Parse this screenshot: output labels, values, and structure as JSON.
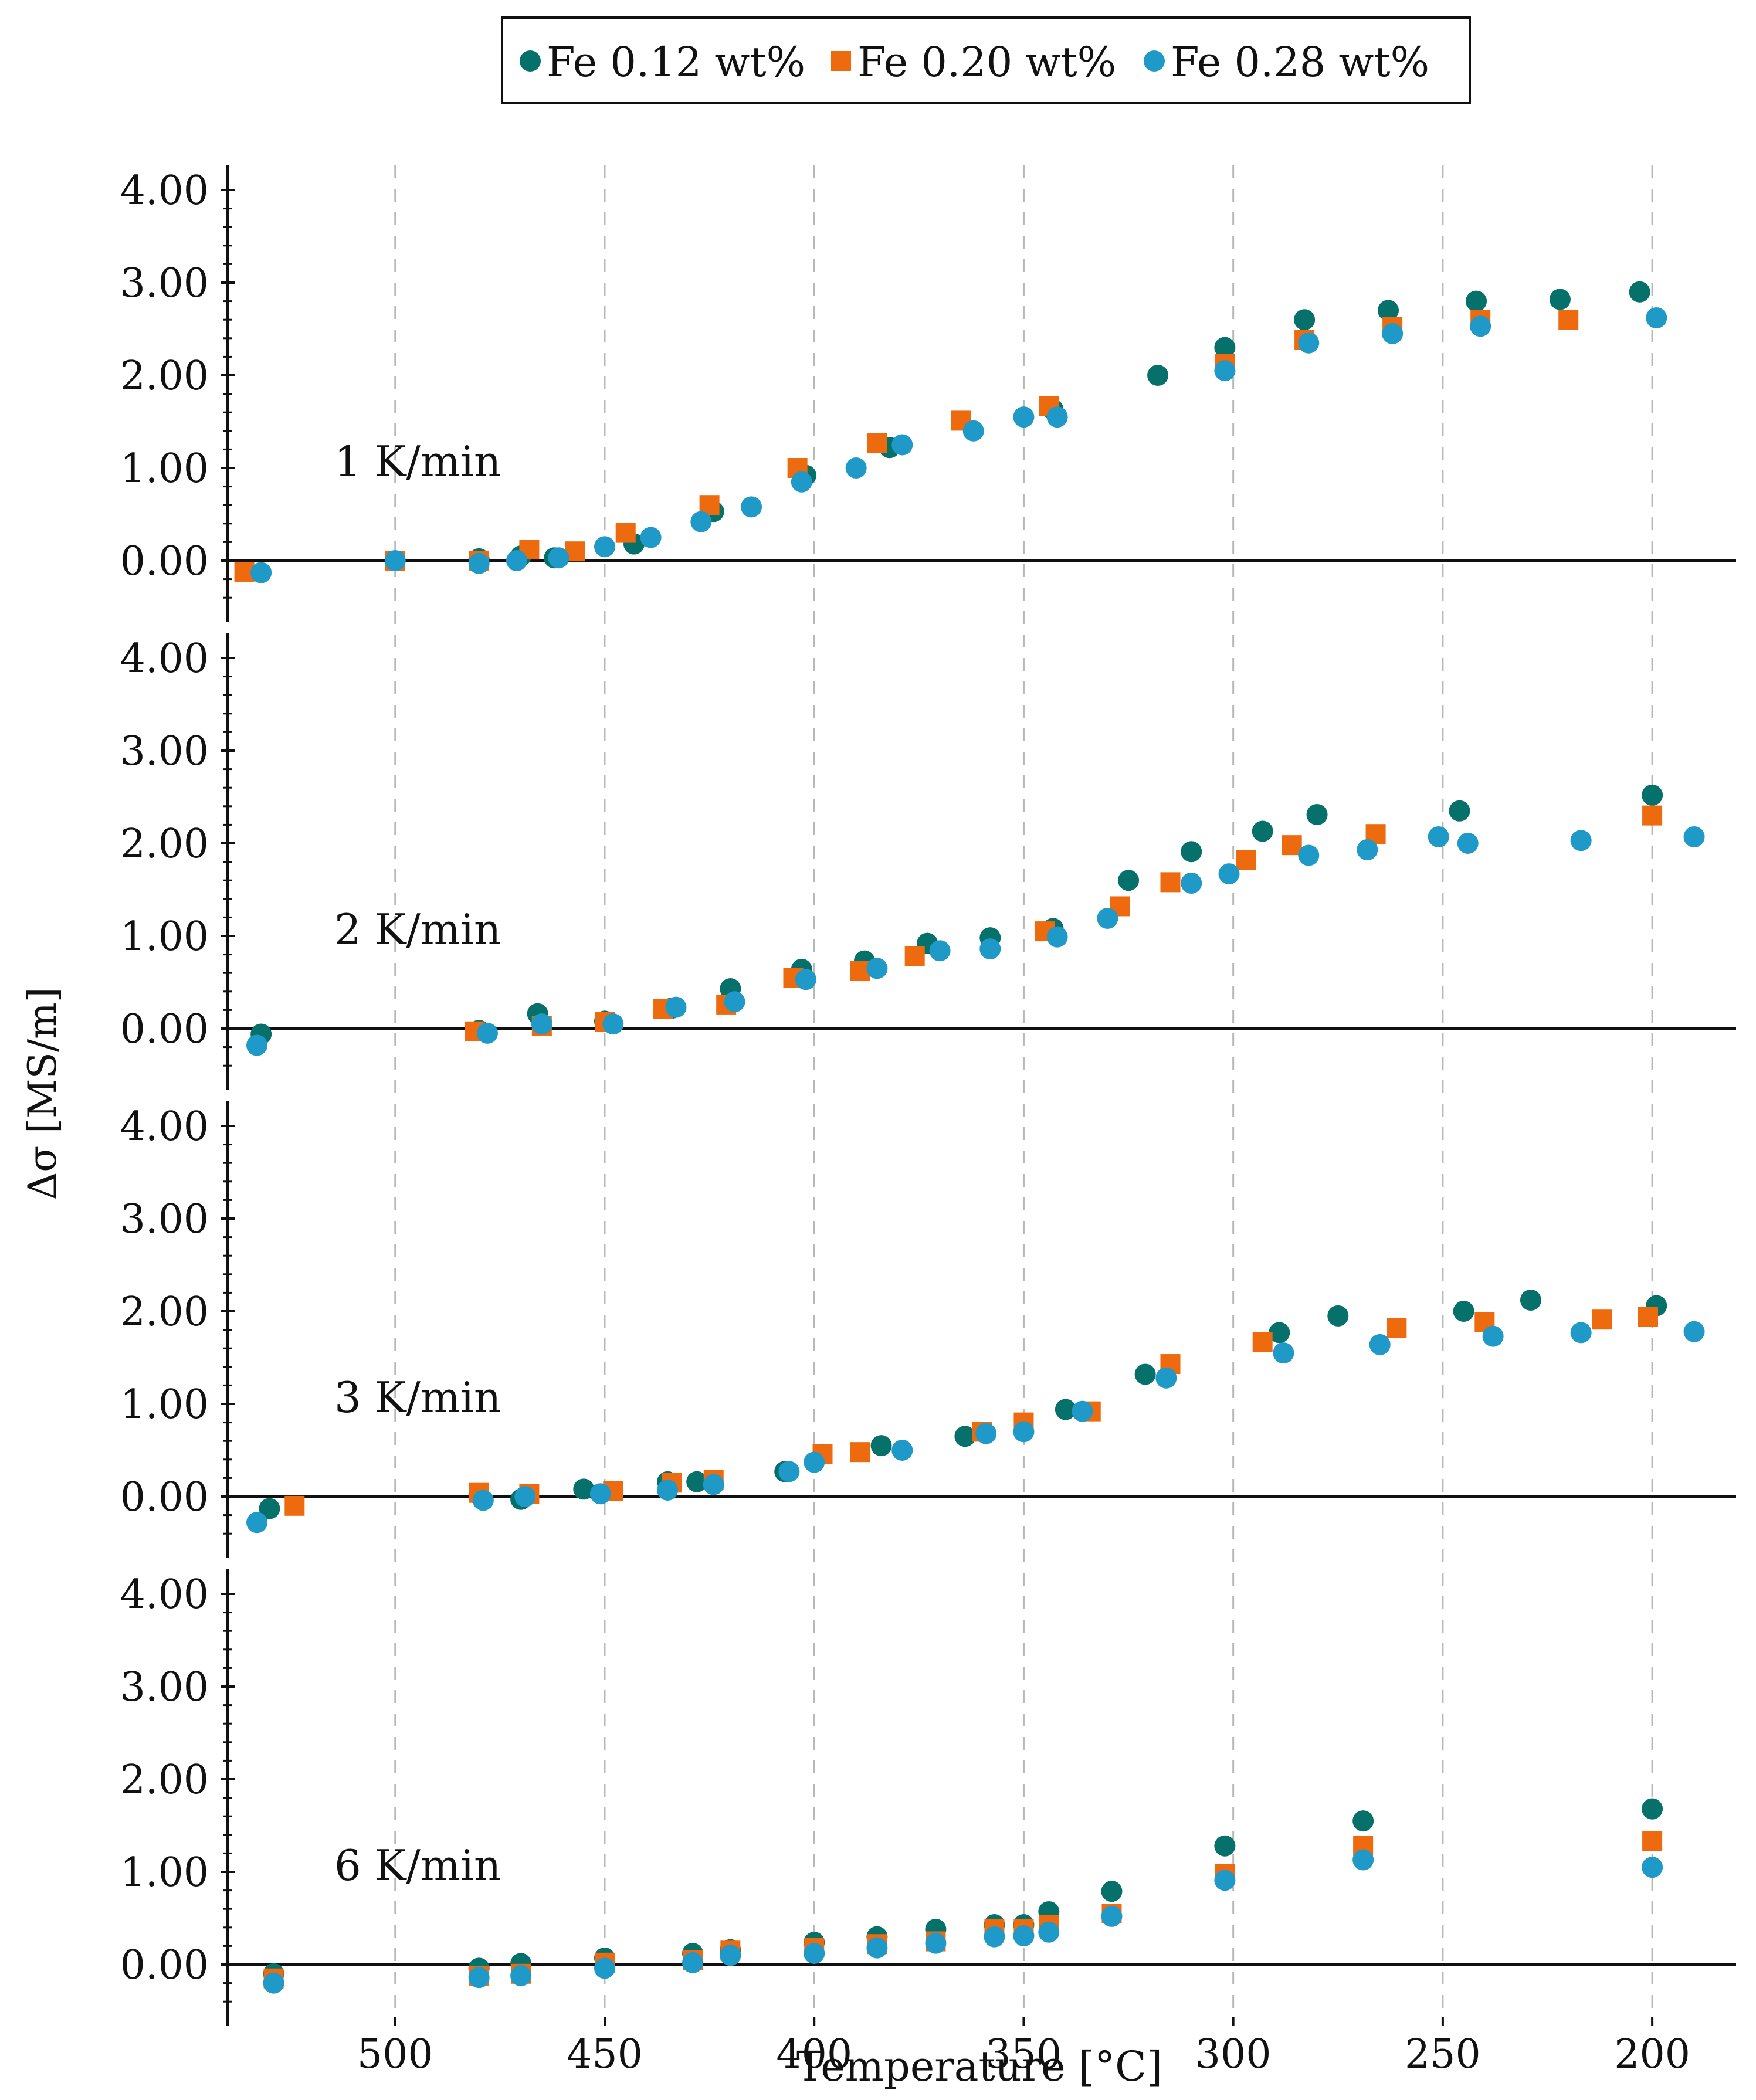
{
  "chart_data": {
    "type": "scatter",
    "xlabel": "Temperature [°C]",
    "ylabel": "Δσ [MS/m]",
    "xlim": [
      540,
      180
    ],
    "x_reversed": true,
    "ylim": [
      -0.5,
      4.0
    ],
    "x_ticks": [
      500,
      450,
      400,
      350,
      300,
      250,
      200
    ],
    "y_ticks": [
      "0.00",
      "1.00",
      "2.00",
      "3.00",
      "4.00"
    ],
    "grid": "vertical dashed lines at x ticks",
    "legend_position": "top-center",
    "colors": {
      "Fe 0.12 wt%": "#06706a",
      "Fe 0.20 wt%": "#ee6a0e",
      "Fe 0.28 wt%": "#1f9ac8"
    },
    "legend": [
      {
        "label": "Fe 0.12 wt%",
        "marker": "circle",
        "color": "#06706a"
      },
      {
        "label": "Fe 0.20 wt%",
        "marker": "square",
        "color": "#ee6a0e"
      },
      {
        "label": "Fe 0.28 wt%",
        "marker": "circle",
        "color": "#1f9ac8"
      }
    ],
    "panels": [
      {
        "label": "1 K/min",
        "series": [
          {
            "name": "Fe 0.12 wt%",
            "x": [
              480,
              470,
              462,
              443,
              424,
              402,
              382,
              343,
              318,
              302,
              283,
              263,
              242,
              222,
              203
            ],
            "y": [
              0.02,
              0.05,
              0.03,
              0.18,
              0.53,
              0.92,
              1.22,
              1.63,
              2.0,
              2.3,
              2.6,
              2.7,
              2.8,
              2.82,
              2.9
            ]
          },
          {
            "name": "Fe 0.20 wt%",
            "x": [
              536,
              500,
              480,
              468,
              457,
              445,
              425,
              404,
              385,
              365,
              344,
              302,
              283,
              262,
              241,
              220
            ],
            "y": [
              -0.12,
              0.0,
              0.0,
              0.12,
              0.1,
              0.3,
              0.6,
              1.0,
              1.27,
              1.51,
              1.67,
              2.12,
              2.38,
              2.52,
              2.6,
              2.6
            ]
          },
          {
            "name": "Fe 0.28 wt%",
            "x": [
              532,
              500,
              480,
              471,
              461,
              450,
              439,
              427,
              415,
              403,
              390,
              379,
              362,
              350,
              342,
              302,
              282,
              262,
              241,
              199
            ],
            "y": [
              -0.13,
              0.0,
              -0.03,
              0.0,
              0.03,
              0.15,
              0.25,
              0.42,
              0.58,
              0.85,
              1.0,
              1.25,
              1.4,
              1.55,
              1.55,
              2.05,
              2.35,
              2.45,
              2.53,
              2.62
            ]
          }
        ]
      },
      {
        "label": "2 K/min",
        "series": [
          {
            "name": "Fe 0.12 wt%",
            "x": [
              532,
              480,
              466,
              450,
              434,
              420,
              403,
              388,
              373,
              358,
              343,
              325,
              310,
              293,
              280,
              246,
              200
            ],
            "y": [
              -0.06,
              -0.02,
              0.16,
              0.08,
              0.22,
              0.43,
              0.64,
              0.73,
              0.92,
              0.98,
              1.08,
              1.6,
              1.91,
              2.13,
              2.31,
              2.35,
              2.52
            ]
          },
          {
            "name": "Fe 0.20 wt%",
            "x": [
              481,
              465,
              450,
              436,
              421,
              405,
              389,
              376,
              345,
              327,
              315,
              297,
              286,
              266,
              200
            ],
            "y": [
              -0.03,
              0.03,
              0.07,
              0.21,
              0.26,
              0.55,
              0.62,
              0.78,
              1.05,
              1.32,
              1.58,
              1.82,
              1.98,
              2.1,
              2.3
            ]
          },
          {
            "name": "Fe 0.28 wt%",
            "x": [
              533,
              478,
              465,
              448,
              433,
              419,
              402,
              385,
              370,
              358,
              342,
              330,
              310,
              301,
              282,
              268,
              251,
              244,
              217,
              190
            ],
            "y": [
              -0.18,
              -0.05,
              0.05,
              0.05,
              0.23,
              0.29,
              0.53,
              0.65,
              0.84,
              0.86,
              0.99,
              1.19,
              1.57,
              1.67,
              1.87,
              1.93,
              2.07,
              2.0,
              2.03,
              2.07
            ]
          }
        ]
      },
      {
        "label": "3 K/min",
        "series": [
          {
            "name": "Fe 0.12 wt%",
            "x": [
              530,
              480,
              470,
              455,
              435,
              428,
              407,
              384,
              364,
              340,
              321,
              289,
              275,
              245,
              229,
              199
            ],
            "y": [
              -0.13,
              0.02,
              -0.03,
              0.08,
              0.16,
              0.16,
              0.27,
              0.55,
              0.65,
              0.94,
              1.32,
              1.77,
              1.95,
              2.0,
              2.12,
              2.06
            ]
          },
          {
            "name": "Fe 0.20 wt%",
            "x": [
              524,
              480,
              468,
              448,
              434,
              424,
              398,
              389,
              360,
              350,
              334,
              315,
              293,
              261,
              240,
              212,
              201
            ],
            "y": [
              -0.1,
              0.04,
              0.03,
              0.06,
              0.15,
              0.18,
              0.46,
              0.48,
              0.7,
              0.8,
              0.92,
              1.43,
              1.67,
              1.82,
              1.88,
              1.91,
              1.94
            ]
          },
          {
            "name": "Fe 0.28 wt%",
            "x": [
              533,
              479,
              469,
              451,
              435,
              424,
              406,
              400,
              379,
              359,
              350,
              336,
              316,
              288,
              265,
              238,
              217,
              190
            ],
            "y": [
              -0.28,
              -0.04,
              0.0,
              0.03,
              0.07,
              0.13,
              0.27,
              0.37,
              0.5,
              0.68,
              0.7,
              0.92,
              1.28,
              1.55,
              1.64,
              1.73,
              1.77,
              1.78
            ]
          }
        ]
      },
      {
        "label": "6 K/min",
        "series": [
          {
            "name": "Fe 0.12 wt%",
            "x": [
              529,
              480,
              470,
              450,
              429,
              420,
              400,
              385,
              371,
              357,
              350,
              344,
              329,
              302,
              269,
              200
            ],
            "y": [
              -0.1,
              -0.04,
              0.01,
              0.07,
              0.12,
              0.16,
              0.24,
              0.3,
              0.38,
              0.43,
              0.43,
              0.57,
              0.79,
              1.28,
              1.55,
              1.68
            ]
          },
          {
            "name": "Fe 0.20 wt%",
            "x": [
              529,
              480,
              470,
              450,
              429,
              420,
              400,
              385,
              371,
              357,
              350,
              344,
              329,
              302,
              269,
              200
            ],
            "y": [
              -0.15,
              -0.12,
              -0.1,
              0.02,
              0.05,
              0.15,
              0.18,
              0.22,
              0.25,
              0.38,
              0.38,
              0.43,
              0.55,
              0.98,
              1.28,
              1.33
            ]
          },
          {
            "name": "Fe 0.28 wt%",
            "x": [
              529,
              480,
              470,
              450,
              429,
              420,
              400,
              385,
              371,
              357,
              350,
              344,
              329,
              302,
              269,
              200
            ],
            "y": [
              -0.2,
              -0.14,
              -0.12,
              -0.04,
              0.02,
              0.1,
              0.12,
              0.18,
              0.23,
              0.3,
              0.31,
              0.35,
              0.52,
              0.91,
              1.13,
              1.05
            ]
          }
        ]
      }
    ]
  }
}
